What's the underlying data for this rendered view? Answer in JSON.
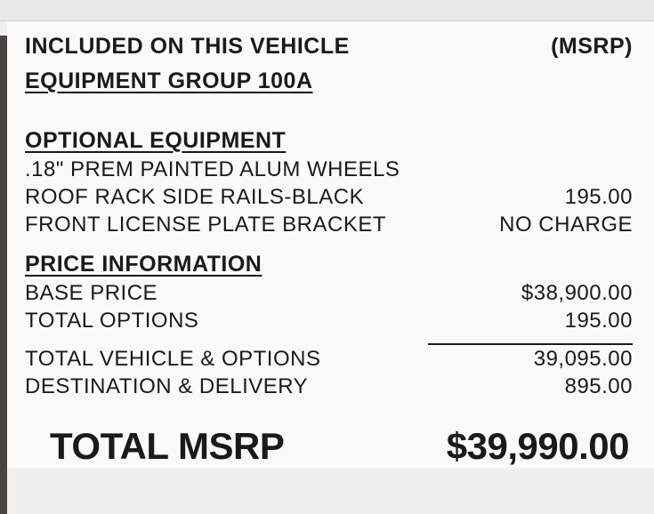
{
  "colors": {
    "bg": "#fafafa",
    "top_bar": "#e8e8e8",
    "left_bar": "#4a4440",
    "text": "#1a1a1a",
    "rule": "#1a1a1a"
  },
  "font_sizes": {
    "header": 25,
    "section_title": 25,
    "line": 24,
    "total": 42
  },
  "header": {
    "left": "INCLUDED ON THIS VEHICLE",
    "right": "(MSRP)"
  },
  "equipment_group": {
    "title": "EQUIPMENT GROUP 100A"
  },
  "optional_equipment": {
    "title": "OPTIONAL EQUIPMENT",
    "items": [
      {
        "label": ".18\" PREM PAINTED ALUM WHEELS",
        "value": ""
      },
      {
        "label": "ROOF RACK SIDE RAILS-BLACK",
        "value": "195.00"
      },
      {
        "label": "FRONT LICENSE PLATE BRACKET",
        "value": "NO CHARGE"
      }
    ]
  },
  "price_info": {
    "title": "PRICE INFORMATION",
    "lines_before_rule": [
      {
        "label": "BASE PRICE",
        "value": "$38,900.00"
      },
      {
        "label": "TOTAL OPTIONS",
        "value": "195.00"
      }
    ],
    "lines_after_rule": [
      {
        "label": "TOTAL VEHICLE & OPTIONS",
        "value": "39,095.00"
      },
      {
        "label": "DESTINATION & DELIVERY",
        "value": "895.00"
      }
    ]
  },
  "total": {
    "label": "TOTAL MSRP",
    "value": "$39,990.00"
  }
}
